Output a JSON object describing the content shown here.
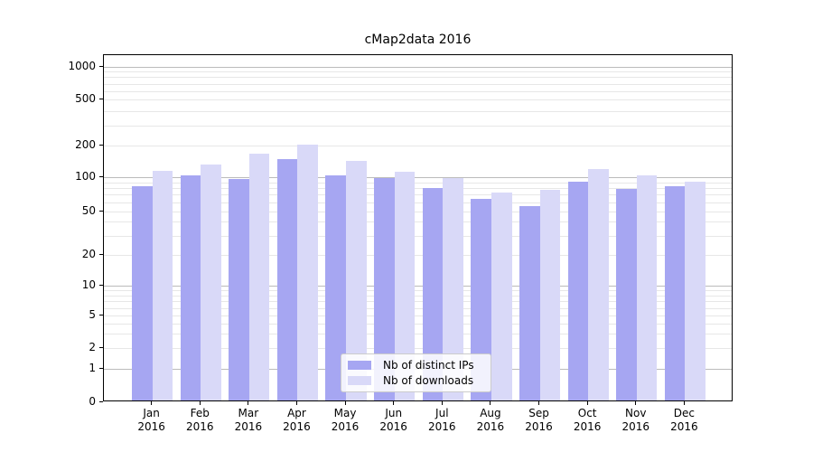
{
  "chart_data": {
    "type": "bar",
    "title": "cMap2data 2016",
    "categories": [
      "Jan",
      "Feb",
      "Mar",
      "Apr",
      "May",
      "Jun",
      "Jul",
      "Aug",
      "Sep",
      "Oct",
      "Nov",
      "Dec"
    ],
    "year_label": "2016",
    "series": [
      {
        "name": "Nb of distinct IPs",
        "color": "#a6a6f2",
        "values": [
          80,
          100,
          93,
          143,
          100,
          95,
          77,
          62,
          54,
          88,
          76,
          80
        ]
      },
      {
        "name": "Nb of downloads",
        "color": "#d9d9f8",
        "values": [
          110,
          126,
          160,
          198,
          137,
          108,
          95,
          70,
          75,
          114,
          100,
          88
        ]
      }
    ],
    "yticks": [
      0,
      1,
      2,
      5,
      10,
      20,
      50,
      100,
      200,
      500,
      1000
    ],
    "yscale": "symlog",
    "ylim": [
      0,
      1300
    ],
    "grid": "horizontal, major and minor log gridlines",
    "legend_position": "lower center"
  }
}
